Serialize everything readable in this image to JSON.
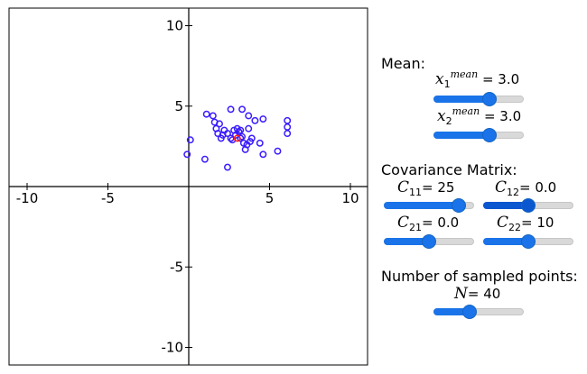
{
  "plot": {
    "xlim": [
      -11,
      11
    ],
    "ylim": [
      -11,
      11
    ],
    "x_ticks": [
      -10,
      -5,
      5,
      10
    ],
    "y_ticks": [
      10,
      5,
      -5,
      -10
    ],
    "x_tick_labels": [
      "-10",
      "-5",
      "5",
      "10"
    ],
    "y_tick_labels": [
      "10",
      "5",
      "-5",
      "-10"
    ],
    "point_color": "#3a1cff",
    "mean_marker_color": "#ff2020",
    "mean_point": [
      3.0,
      3.0
    ],
    "points": [
      [
        1.1,
        4.5
      ],
      [
        1.5,
        4.4
      ],
      [
        1.6,
        4.0
      ],
      [
        1.9,
        3.9
      ],
      [
        1.7,
        3.6
      ],
      [
        1.8,
        3.3
      ],
      [
        2.1,
        3.2
      ],
      [
        2.4,
        3.3
      ],
      [
        2.2,
        3.5
      ],
      [
        2.6,
        4.8
      ],
      [
        2.8,
        3.5
      ],
      [
        3.0,
        3.6
      ],
      [
        3.1,
        3.4
      ],
      [
        3.2,
        3.5
      ],
      [
        3.3,
        3.1
      ],
      [
        3.4,
        2.7
      ],
      [
        3.5,
        2.3
      ],
      [
        3.6,
        2.6
      ],
      [
        3.7,
        3.6
      ],
      [
        3.3,
        4.8
      ],
      [
        3.7,
        4.4
      ],
      [
        4.1,
        4.1
      ],
      [
        4.6,
        4.2
      ],
      [
        3.9,
        3.0
      ],
      [
        3.8,
        2.8
      ],
      [
        4.4,
        2.7
      ],
      [
        4.6,
        2.0
      ],
      [
        5.5,
        2.2
      ],
      [
        6.1,
        4.1
      ],
      [
        6.1,
        3.7
      ],
      [
        6.1,
        3.3
      ],
      [
        2.0,
        3.0
      ],
      [
        2.6,
        3.0
      ],
      [
        0.1,
        2.9
      ],
      [
        -0.1,
        2.0
      ],
      [
        1.0,
        1.7
      ],
      [
        2.4,
        1.2
      ],
      [
        3.2,
        3.0
      ],
      [
        2.9,
        3.2
      ],
      [
        2.7,
        2.9
      ]
    ]
  },
  "controls": {
    "mean_heading": "Mean:",
    "x1_label": "x",
    "x1_sub": "1",
    "x1_sup": "mean",
    "x1_value": "= 3.0",
    "x2_label": "x",
    "x2_sub": "2",
    "x2_sup": "mean",
    "x2_value": "= 3.0",
    "cov_heading": "Covariance Matrix:",
    "c11_label": "C",
    "c11_sub": "11",
    "c11_value": "= 25",
    "c12_label": "C",
    "c12_sub": "12",
    "c12_value": "= 0.0",
    "c21_label": "C",
    "c21_sub": "21",
    "c21_value": "= 0.0",
    "c22_label": "C",
    "c22_sub": "22",
    "c22_value": "= 10",
    "n_heading": "Number of sampled points:",
    "n_label": "N",
    "n_value": "= 40",
    "slider_levels": {
      "x1": 0.62,
      "x2": 0.62,
      "c11": 0.83,
      "c12": 0.5,
      "c21": 0.5,
      "c22": 0.5,
      "n": 0.4
    },
    "accent_color": "#1a73e8"
  }
}
